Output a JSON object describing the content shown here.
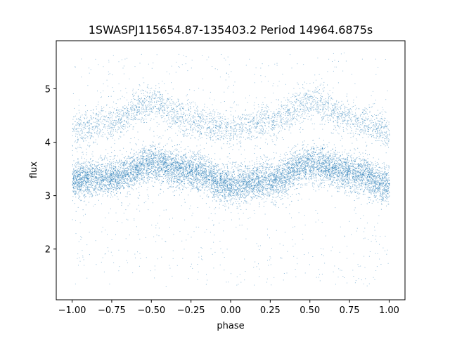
{
  "chart_data": {
    "type": "scatter",
    "title": "1SWASPJ115654.87-135403.2 Period 14964.6875s",
    "xlabel": "phase",
    "ylabel": "flux",
    "xlim": [
      -1.1,
      1.1
    ],
    "ylim": [
      1.05,
      5.9
    ],
    "x_ticks": [
      -1.0,
      -0.75,
      -0.5,
      -0.25,
      0.0,
      0.25,
      0.5,
      0.75,
      1.0
    ],
    "x_tick_labels": [
      "−1.00",
      "−0.75",
      "−0.50",
      "−0.25",
      "0.00",
      "0.25",
      "0.50",
      "0.75",
      "1.00"
    ],
    "y_ticks": [
      2,
      3,
      4,
      5
    ],
    "y_tick_labels": [
      "2",
      "3",
      "4",
      "5"
    ],
    "grid": false,
    "marker_color": "#1f77b4",
    "phase_range": [
      -1.0,
      1.0
    ],
    "series": [
      {
        "band": "lower",
        "points": [
          {
            "x": -1.0,
            "y": 3.3
          },
          {
            "x": -0.75,
            "y": 3.35
          },
          {
            "x": -0.5,
            "y": 3.6
          },
          {
            "x": -0.25,
            "y": 3.45
          },
          {
            "x": 0.0,
            "y": 3.2
          },
          {
            "x": 0.25,
            "y": 3.3
          },
          {
            "x": 0.5,
            "y": 3.6
          },
          {
            "x": 0.75,
            "y": 3.45
          },
          {
            "x": 1.0,
            "y": 3.2
          }
        ]
      },
      {
        "band": "upper",
        "points": [
          {
            "x": -1.0,
            "y": 4.25
          },
          {
            "x": -0.75,
            "y": 4.4
          },
          {
            "x": -0.5,
            "y": 4.75
          },
          {
            "x": -0.25,
            "y": 4.4
          },
          {
            "x": 0.0,
            "y": 4.25
          },
          {
            "x": 0.25,
            "y": 4.4
          },
          {
            "x": 0.5,
            "y": 4.75
          },
          {
            "x": 0.75,
            "y": 4.45
          },
          {
            "x": 1.0,
            "y": 4.2
          }
        ]
      }
    ]
  }
}
